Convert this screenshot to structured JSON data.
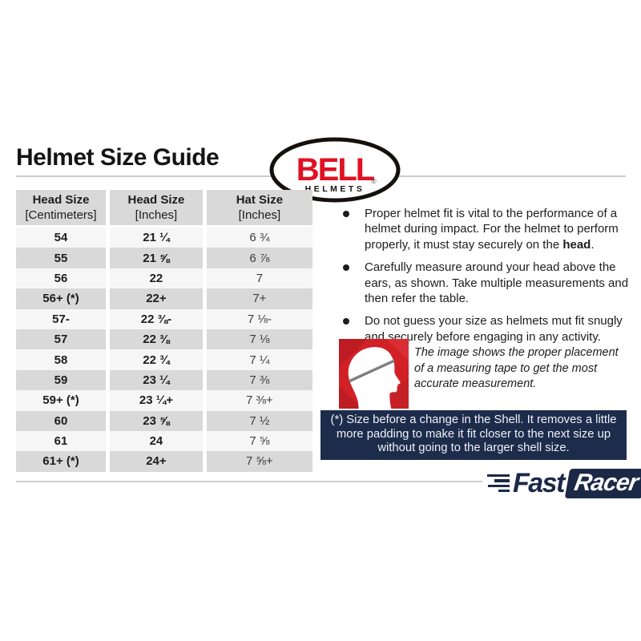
{
  "page": {
    "title": "Helmet Size Guide"
  },
  "bell_logo": {
    "brand": "BELL",
    "sub": "HELMETS",
    "registered": "®"
  },
  "table": {
    "headers": [
      {
        "line1": "Head Size",
        "line2": "[Centimeters]"
      },
      {
        "line1": "Head Size",
        "line2": "[Inches]"
      },
      {
        "line1": "Hat Size",
        "line2": "[Inches]"
      }
    ],
    "rows": [
      [
        "54",
        "21 ¼",
        "6 ¾"
      ],
      [
        "55",
        "21 ⅝",
        "6 ⅞"
      ],
      [
        "56",
        "22",
        "7"
      ],
      [
        "56+ (*)",
        "22+",
        "7+"
      ],
      [
        "57-",
        "22 ⅜-",
        "7 ⅛-"
      ],
      [
        "57",
        "22 ⅜",
        "7 ⅛"
      ],
      [
        "58",
        "22 ¾",
        "7 ¼"
      ],
      [
        "59",
        "23 ¼",
        "7 ⅜"
      ],
      [
        "59+ (*)",
        "23 ¼+",
        "7 ⅜+"
      ],
      [
        "60",
        "23 ⅝",
        "7 ½"
      ],
      [
        "61",
        "24",
        "7 ⅝"
      ],
      [
        "61+ (*)",
        "24+",
        "7 ⅝+"
      ]
    ]
  },
  "bullets": [
    {
      "pre": "Proper helmet fit is vital to the performance of a helmet during impact. For the helmet to perform properly, it must stay securely on the ",
      "bold": "head",
      "post": "."
    },
    {
      "pre": "Carefully measure around your head above the ears, as shown. Take multiple measurements and then refer the table.",
      "bold": "",
      "post": ""
    },
    {
      "pre": "Do not guess your size as helmets mut fit snugly and securely before engaging in any activity.",
      "bold": "",
      "post": ""
    }
  ],
  "figure_caption": "The image shows the proper placement of a measuring tape to get the most accurate measurement.",
  "note_box": {
    "text": "(*) Size before a change in the Shell. It removes a little more padding to make it fit closer to the next size up without going to the larger shell size."
  },
  "footer_logo": {
    "fast": "Fast",
    "racer": "Racer"
  },
  "colors": {
    "bell_red": "#e01222",
    "navy": "#1e2c4c",
    "table_dark": "#d9d9d9",
    "table_light": "#f6f6f6",
    "figure_red": "#d12026",
    "rule_gray": "#cdcdcd"
  }
}
